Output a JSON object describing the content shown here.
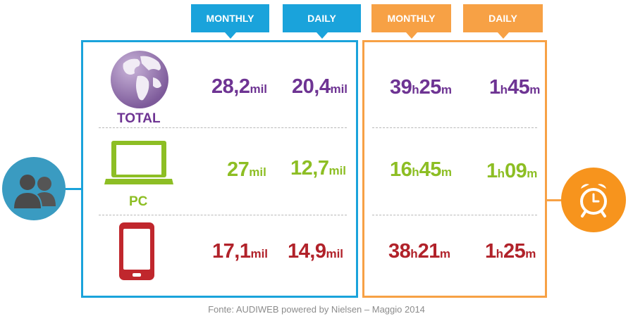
{
  "headers": {
    "users": {
      "monthly": "MONTHLY",
      "daily": "DAILY"
    },
    "time": {
      "monthly": "MONTHLY",
      "daily": "DAILY"
    }
  },
  "rows": [
    {
      "label": "TOTAL",
      "icon": "globe-icon",
      "color": "#6E3493",
      "users_monthly": {
        "value": "28,2",
        "unit": "mil"
      },
      "users_daily": {
        "value": "20,4",
        "unit": "mil"
      },
      "time_monthly": {
        "h": "39",
        "m": "25"
      },
      "time_daily": {
        "h": "1",
        "m": "45"
      }
    },
    {
      "label": "PC",
      "icon": "laptop-icon",
      "color": "#8DBE24",
      "users_monthly": {
        "value": "27",
        "unit": "mil"
      },
      "users_daily": {
        "value": "12,7",
        "unit": "mil"
      },
      "time_monthly": {
        "h": "16",
        "m": "45"
      },
      "time_daily": {
        "h": "1",
        "m": "09"
      }
    },
    {
      "label": "",
      "icon": "smartphone-icon",
      "color": "#B1222A",
      "users_monthly": {
        "value": "17,1",
        "unit": "mil"
      },
      "users_daily": {
        "value": "14,9",
        "unit": "mil"
      },
      "time_monthly": {
        "h": "38",
        "m": "21"
      },
      "time_daily": {
        "h": "1",
        "m": "25"
      }
    }
  ],
  "units": {
    "hours": "h",
    "minutes": "m"
  },
  "colors": {
    "blue": "#1AA3DB",
    "orange": "#F7A145",
    "users_circle": "#3A9BC1",
    "clock_circle": "#F7941D"
  },
  "icons": {
    "users": "users-icon",
    "clock": "alarm-clock-icon"
  },
  "footer": "Fonte: AUDIWEB  powered by Nielsen – Maggio 2014"
}
